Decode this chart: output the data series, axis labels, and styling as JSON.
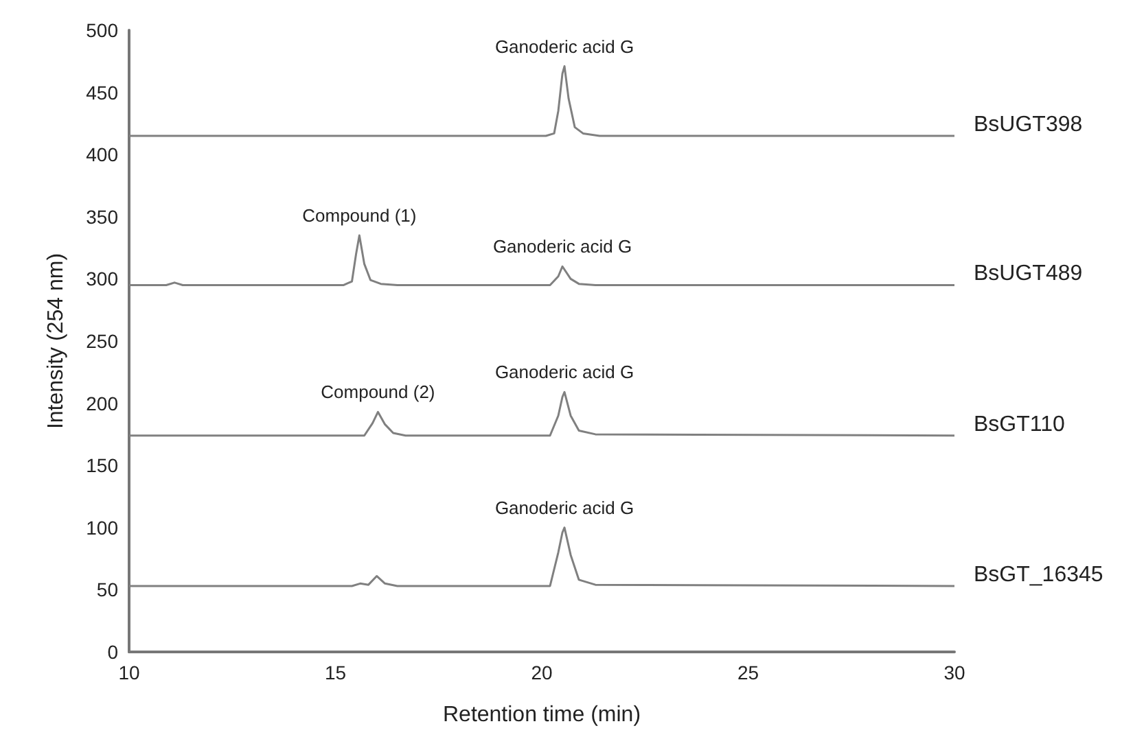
{
  "chart_data": {
    "type": "line",
    "xlabel": "Retention time (min)",
    "ylabel": "Intensity (254 nm)",
    "xlim": [
      10,
      30
    ],
    "xticks": [
      10,
      15,
      20,
      25,
      30
    ],
    "ylim": [
      0,
      500
    ],
    "yticks": [
      0,
      50,
      100,
      150,
      200,
      250,
      300,
      350,
      400,
      450,
      500
    ],
    "grid": false,
    "legend": false,
    "marker": "none",
    "line_style": "solid",
    "series": [
      {
        "name": "BsUGT398",
        "color": "#808080",
        "x": [
          10,
          20.1,
          20.3,
          20.4,
          20.5,
          20.55,
          20.65,
          20.8,
          21.0,
          21.4,
          30
        ],
        "values": [
          415,
          415,
          417,
          435,
          465,
          471,
          445,
          422,
          417,
          415,
          415
        ]
      },
      {
        "name": "BsUGT489",
        "color": "#808080",
        "x": [
          10,
          10.9,
          11.1,
          11.3,
          15.2,
          15.4,
          15.5,
          15.58,
          15.7,
          15.85,
          16.1,
          16.5,
          20.2,
          20.4,
          20.5,
          20.7,
          20.9,
          21.3,
          30
        ],
        "values": [
          295,
          295,
          297,
          295,
          295,
          298,
          320,
          335,
          312,
          299,
          296,
          295,
          295,
          302,
          310,
          300,
          296,
          295,
          295
        ]
      },
      {
        "name": "BsGT110",
        "color": "#808080",
        "x": [
          10,
          15.7,
          15.9,
          16.03,
          16.2,
          16.4,
          16.7,
          20.2,
          20.4,
          20.5,
          20.55,
          20.7,
          20.9,
          21.3,
          30
        ],
        "values": [
          174,
          174,
          184,
          193,
          183,
          176,
          174,
          174,
          190,
          205,
          209,
          190,
          178,
          175,
          174
        ]
      },
      {
        "name": "BsGT_16345",
        "color": "#808080",
        "x": [
          10,
          15.4,
          15.6,
          15.8,
          16.0,
          16.2,
          16.5,
          20.2,
          20.4,
          20.5,
          20.55,
          20.7,
          20.9,
          21.3,
          30
        ],
        "values": [
          53,
          53,
          55,
          54,
          61,
          55,
          53,
          53,
          80,
          96,
          100,
          78,
          58,
          54,
          53
        ]
      }
    ],
    "annotations": [
      {
        "text": "Ganoderic acid G",
        "x": 20.55,
        "y": 471
      },
      {
        "text": "Compound (1)",
        "x": 15.58,
        "y": 335
      },
      {
        "text": "Ganoderic acid G",
        "x": 20.5,
        "y": 310
      },
      {
        "text": "Compound (2)",
        "x": 16.03,
        "y": 193
      },
      {
        "text": "Ganoderic acid G",
        "x": 20.55,
        "y": 209
      },
      {
        "text": "Ganoderic acid G",
        "x": 20.55,
        "y": 100
      }
    ]
  }
}
